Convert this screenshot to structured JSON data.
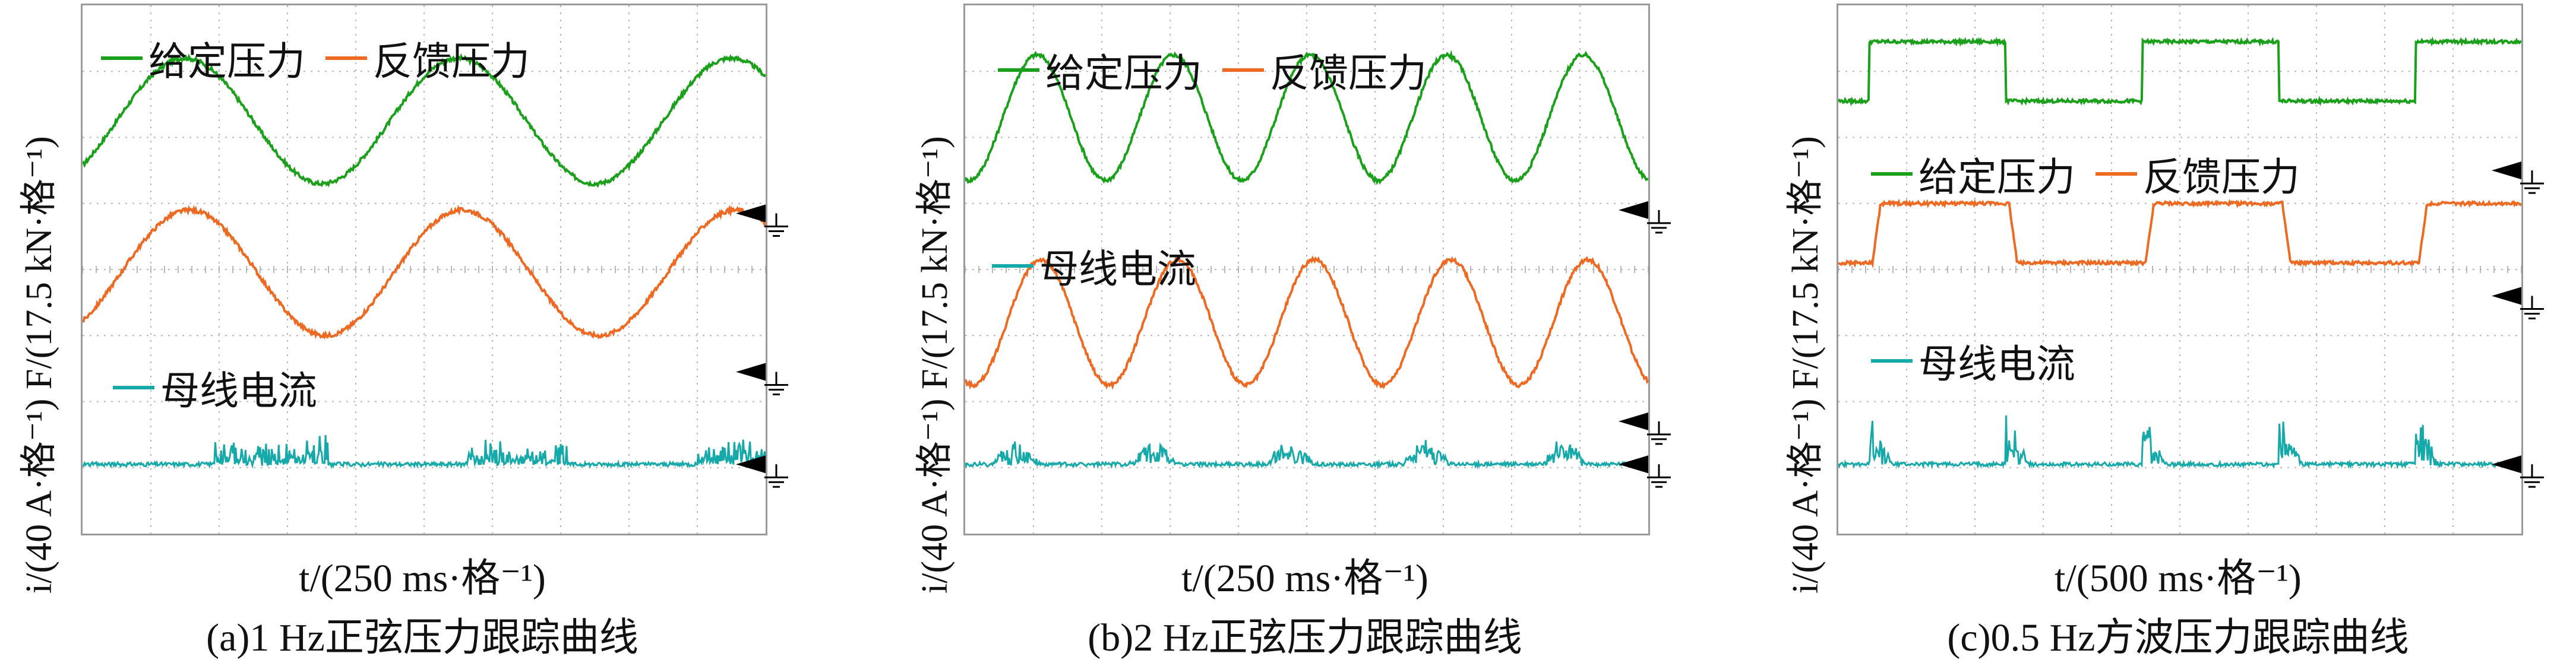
{
  "colors": {
    "given": "#1aa01a",
    "feedback": "#ee6a22",
    "current": "#16a9a9",
    "grid": "#b8b8b8",
    "frame": "#9a9a9a"
  },
  "legend_labels": {
    "given": "给定压力",
    "feedback": "反馈压力",
    "current": "母线电流"
  },
  "chart_data": [
    {
      "type": "line",
      "caption": "(a)1 Hz正弦压力跟踪曲线",
      "xlabel": "t/(250 ms·格⁻¹)",
      "ylabel": "i/(40 A·格⁻¹) F/(17.5 kN·格⁻¹)",
      "grid": true,
      "xlim": [
        0,
        10
      ],
      "ylim": [
        0,
        8
      ],
      "waveform": "sine",
      "frequency_hz": 1,
      "series": [
        {
          "name": "给定压力",
          "center_div": 6.25,
          "amplitude_div": 0.95
        },
        {
          "name": "反馈压力",
          "center_div": 3.95,
          "amplitude_div": 0.95
        },
        {
          "name": "母线电流",
          "baseline_div": 1.05,
          "bursts": "irregular"
        }
      ]
    },
    {
      "type": "line",
      "caption": "(b)2 Hz正弦压力跟踪曲线",
      "xlabel": "t/(250 ms·格⁻¹)",
      "ylabel": "i/(40 A·格⁻¹) F/(17.5 kN·格⁻¹)",
      "grid": true,
      "xlim": [
        0,
        10
      ],
      "ylim": [
        0,
        8
      ],
      "waveform": "sine",
      "frequency_hz": 2,
      "series": [
        {
          "name": "给定压力",
          "center_div": 6.3,
          "amplitude_div": 0.95
        },
        {
          "name": "反馈压力",
          "center_div": 3.2,
          "amplitude_div": 0.95
        },
        {
          "name": "母线电流",
          "baseline_div": 1.05,
          "bursts": "periodic"
        }
      ]
    },
    {
      "type": "line",
      "caption": "(c)0.5 Hz方波压力跟踪曲线",
      "xlabel": "t/(500 ms·格⁻¹)",
      "ylabel": "i/(40 A·格⁻¹) F/(17.5 kN·格⁻¹)",
      "grid": true,
      "xlim": [
        0,
        10
      ],
      "ylim": [
        0,
        8
      ],
      "waveform": "square",
      "frequency_hz": 0.5,
      "series": [
        {
          "name": "给定压力",
          "low_div": 6.55,
          "high_div": 7.45
        },
        {
          "name": "反馈压力",
          "low_div": 4.1,
          "high_div": 5.0
        },
        {
          "name": "母线电流",
          "baseline_div": 1.05,
          "bursts": "edges"
        }
      ]
    }
  ]
}
